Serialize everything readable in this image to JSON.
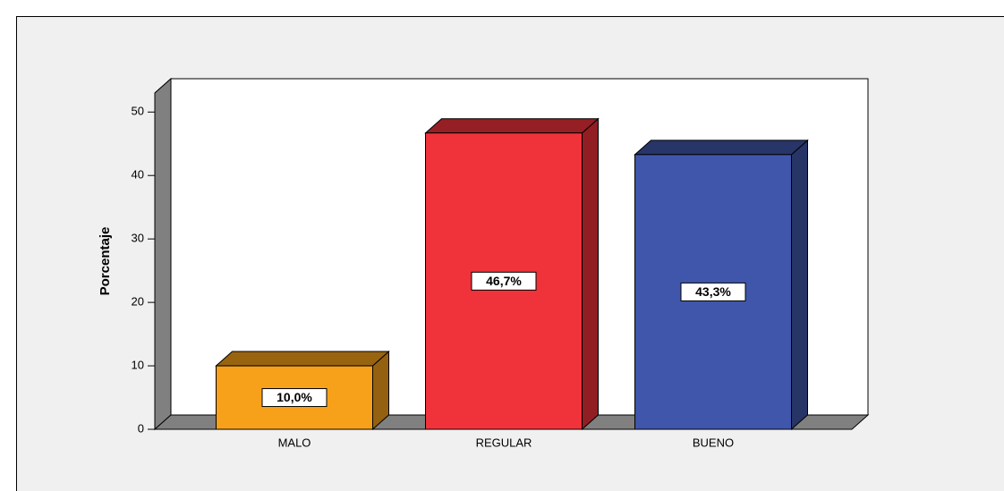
{
  "chart_data": {
    "type": "bar3d",
    "ylabel": "Porcentaje",
    "categories": [
      "MALO",
      "REGULAR",
      "BUENO"
    ],
    "values": [
      10.0,
      46.7,
      43.3
    ],
    "value_labels": [
      "10,0%",
      "46,7%",
      "43,3%"
    ],
    "colors": [
      "#f7a11a",
      "#f0323a",
      "#3f56aa"
    ],
    "ylim": [
      0,
      53
    ],
    "yticks": [
      0,
      10,
      20,
      30,
      40,
      50
    ]
  }
}
